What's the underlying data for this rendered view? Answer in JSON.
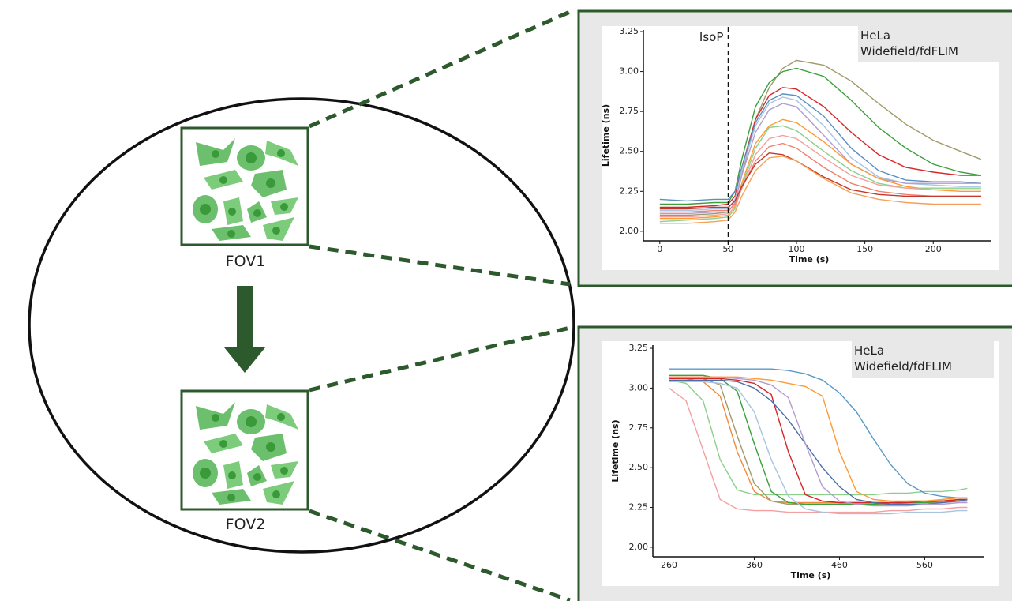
{
  "diagram": {
    "fov_labels": [
      "FOV1",
      "FOV2"
    ]
  },
  "chart_data": [
    {
      "type": "line",
      "x_label": "Time (s)",
      "y_label": "Lifetime (ns)",
      "annotation_box": [
        "HeLa",
        "Widefield/fdFLIM"
      ],
      "annotations": [
        {
          "text": "IsoP",
          "x": 50
        }
      ],
      "xlim": [
        -12,
        242
      ],
      "ylim": [
        1.94,
        3.26
      ],
      "xticks": [
        0,
        50,
        100,
        150,
        200
      ],
      "yticks": [
        {
          "value": 2,
          "label": "2.00"
        },
        2.25,
        {
          "value": 2.5,
          "label": "2.50"
        },
        2.75,
        {
          "value": 3,
          "label": "3.00"
        },
        3.25
      ],
      "grid": false,
      "x": [
        0,
        20,
        40,
        50,
        55,
        60,
        70,
        80,
        90,
        100,
        120,
        140,
        160,
        180,
        200,
        220,
        235
      ],
      "series": [
        {
          "color": "#a09a6a",
          "values": [
            2.1,
            2.1,
            2.11,
            2.12,
            2.18,
            2.35,
            2.7,
            2.9,
            3.02,
            3.07,
            3.04,
            2.94,
            2.8,
            2.67,
            2.57,
            2.5,
            2.45
          ]
        },
        {
          "color": "#3aa03a",
          "values": [
            2.17,
            2.17,
            2.18,
            2.18,
            2.25,
            2.45,
            2.78,
            2.93,
            3.0,
            3.02,
            2.97,
            2.82,
            2.65,
            2.52,
            2.42,
            2.37,
            2.35
          ]
        },
        {
          "color": "#d62728",
          "values": [
            2.15,
            2.15,
            2.16,
            2.17,
            2.22,
            2.4,
            2.7,
            2.85,
            2.9,
            2.89,
            2.78,
            2.62,
            2.48,
            2.4,
            2.37,
            2.35,
            2.35
          ]
        },
        {
          "color": "#5a8fc0",
          "values": [
            2.2,
            2.19,
            2.2,
            2.2,
            2.25,
            2.4,
            2.68,
            2.82,
            2.86,
            2.85,
            2.72,
            2.52,
            2.38,
            2.32,
            2.31,
            2.31,
            2.3
          ]
        },
        {
          "color": "#a8c4e0",
          "values": [
            2.13,
            2.13,
            2.14,
            2.14,
            2.2,
            2.38,
            2.66,
            2.8,
            2.84,
            2.82,
            2.66,
            2.46,
            2.34,
            2.3,
            2.29,
            2.28,
            2.28
          ]
        },
        {
          "color": "#b39ccf",
          "values": [
            2.11,
            2.11,
            2.12,
            2.12,
            2.18,
            2.35,
            2.62,
            2.76,
            2.8,
            2.78,
            2.6,
            2.42,
            2.33,
            2.3,
            2.3,
            2.3,
            2.3
          ]
        },
        {
          "color": "#ff9933",
          "values": [
            2.08,
            2.08,
            2.09,
            2.1,
            2.16,
            2.3,
            2.55,
            2.66,
            2.7,
            2.68,
            2.56,
            2.42,
            2.33,
            2.28,
            2.26,
            2.25,
            2.25
          ]
        },
        {
          "color": "#8cd08c",
          "values": [
            2.06,
            2.07,
            2.08,
            2.09,
            2.14,
            2.28,
            2.52,
            2.65,
            2.66,
            2.63,
            2.5,
            2.38,
            2.3,
            2.27,
            2.27,
            2.27,
            2.27
          ]
        },
        {
          "color": "#f4a0a0",
          "values": [
            2.09,
            2.09,
            2.1,
            2.11,
            2.15,
            2.27,
            2.48,
            2.58,
            2.6,
            2.58,
            2.46,
            2.35,
            2.29,
            2.27,
            2.26,
            2.26,
            2.26
          ]
        },
        {
          "color": "#f08070",
          "values": [
            2.12,
            2.12,
            2.13,
            2.13,
            2.17,
            2.27,
            2.44,
            2.53,
            2.55,
            2.52,
            2.4,
            2.3,
            2.25,
            2.23,
            2.22,
            2.22,
            2.22
          ]
        },
        {
          "color": "#c0392b",
          "values": [
            2.14,
            2.14,
            2.15,
            2.15,
            2.19,
            2.28,
            2.42,
            2.49,
            2.48,
            2.44,
            2.34,
            2.26,
            2.23,
            2.22,
            2.22,
            2.22,
            2.22
          ]
        },
        {
          "color": "#f5a05a",
          "values": [
            2.05,
            2.05,
            2.06,
            2.07,
            2.12,
            2.22,
            2.38,
            2.46,
            2.47,
            2.44,
            2.33,
            2.24,
            2.2,
            2.18,
            2.17,
            2.17,
            2.17
          ]
        }
      ]
    },
    {
      "type": "line",
      "x_label": "Time (s)",
      "y_label": "Lifetime (ns)",
      "annotation_box": [
        "HeLa",
        "Widefield/fdFLIM"
      ],
      "xlim": [
        241,
        630
      ],
      "ylim": [
        1.94,
        3.27
      ],
      "xticks": [
        260,
        360,
        460,
        560
      ],
      "yticks": [
        {
          "value": 2,
          "label": "2.00"
        },
        2.25,
        {
          "value": 2.5,
          "label": "2.50"
        },
        2.75,
        {
          "value": 3,
          "label": "3.00"
        },
        3.25
      ],
      "grid": false,
      "x": [
        260,
        280,
        300,
        320,
        340,
        360,
        380,
        400,
        420,
        440,
        460,
        480,
        500,
        520,
        540,
        560,
        580,
        600,
        610
      ],
      "series": [
        {
          "color": "#f4a0a0",
          "values": [
            3.0,
            2.92,
            2.61,
            2.3,
            2.24,
            2.23,
            2.23,
            2.22,
            2.22,
            2.22,
            2.22,
            2.22,
            2.22,
            2.23,
            2.23,
            2.24,
            2.24,
            2.25,
            2.25
          ]
        },
        {
          "color": "#8cd08c",
          "values": [
            3.05,
            3.03,
            2.92,
            2.55,
            2.36,
            2.33,
            2.33,
            2.33,
            2.33,
            2.33,
            2.33,
            2.33,
            2.33,
            2.34,
            2.34,
            2.35,
            2.35,
            2.36,
            2.37
          ]
        },
        {
          "color": "#f08a40",
          "values": [
            3.06,
            3.06,
            3.04,
            2.95,
            2.6,
            2.35,
            2.29,
            2.28,
            2.28,
            2.28,
            2.28,
            2.28,
            2.28,
            2.28,
            2.29,
            2.29,
            2.29,
            2.3,
            2.3
          ]
        },
        {
          "color": "#a09a6a",
          "values": [
            3.07,
            3.07,
            3.06,
            3.02,
            2.7,
            2.4,
            2.29,
            2.27,
            2.27,
            2.27,
            2.27,
            2.27,
            2.27,
            2.27,
            2.28,
            2.28,
            2.28,
            2.29,
            2.29
          ]
        },
        {
          "color": "#3aa03a",
          "values": [
            3.08,
            3.08,
            3.08,
            3.06,
            2.98,
            2.65,
            2.35,
            2.28,
            2.27,
            2.27,
            2.27,
            2.27,
            2.27,
            2.28,
            2.28,
            2.28,
            2.29,
            2.29,
            2.3
          ]
        },
        {
          "color": "#a8c4e0",
          "values": [
            3.04,
            3.04,
            3.04,
            3.03,
            3.0,
            2.85,
            2.55,
            2.32,
            2.24,
            2.22,
            2.21,
            2.21,
            2.21,
            2.21,
            2.22,
            2.22,
            2.22,
            2.23,
            2.23
          ]
        },
        {
          "color": "#d62728",
          "values": [
            3.06,
            3.06,
            3.06,
            3.06,
            3.05,
            3.03,
            2.96,
            2.6,
            2.33,
            2.29,
            2.28,
            2.28,
            2.28,
            2.28,
            2.28,
            2.29,
            2.29,
            2.3,
            2.3
          ]
        },
        {
          "color": "#4a6fa5",
          "values": [
            3.05,
            3.05,
            3.05,
            3.05,
            3.04,
            3.0,
            2.92,
            2.8,
            2.65,
            2.5,
            2.38,
            2.3,
            2.28,
            2.27,
            2.27,
            2.27,
            2.28,
            2.29,
            2.3
          ]
        },
        {
          "color": "#b39ccf",
          "values": [
            3.07,
            3.07,
            3.07,
            3.07,
            3.06,
            3.05,
            3.02,
            2.94,
            2.65,
            2.38,
            2.29,
            2.27,
            2.26,
            2.26,
            2.26,
            2.27,
            2.27,
            2.28,
            2.28
          ]
        },
        {
          "color": "#ff9933",
          "values": [
            3.07,
            3.07,
            3.07,
            3.07,
            3.07,
            3.06,
            3.05,
            3.03,
            3.01,
            2.95,
            2.6,
            2.35,
            2.3,
            2.29,
            2.29,
            2.29,
            2.3,
            2.31,
            2.31
          ]
        },
        {
          "color": "#5a9ac8",
          "values": [
            3.12,
            3.12,
            3.12,
            3.12,
            3.12,
            3.12,
            3.12,
            3.11,
            3.09,
            3.05,
            2.97,
            2.85,
            2.68,
            2.52,
            2.4,
            2.34,
            2.32,
            2.31,
            2.31
          ]
        }
      ]
    }
  ]
}
